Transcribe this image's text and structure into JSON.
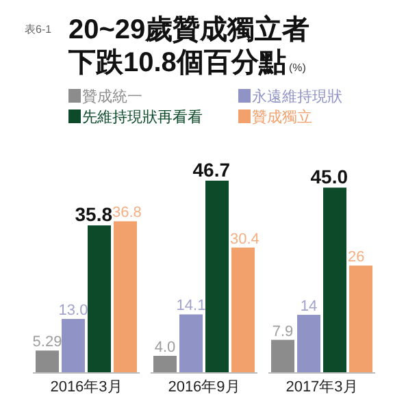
{
  "chart_data": {
    "type": "bar",
    "title": "20~29歲贊成獨立者下跌10.8個百分點",
    "annotations": [
      "表6-1",
      "(%)"
    ],
    "categories": [
      "2016年3月",
      "2016年9月",
      "2017年3月"
    ],
    "series": [
      {
        "name": "贊成統一",
        "color": "#8c8c8c",
        "values": [
          5.29,
          4.0,
          7.9
        ],
        "value_labels": [
          "5.29",
          "4.0",
          "7.9"
        ]
      },
      {
        "name": "永遠維持現狀",
        "color": "#9093c6",
        "values": [
          13.0,
          14.1,
          14
        ],
        "value_labels": [
          "13.0",
          "14.1",
          "14"
        ]
      },
      {
        "name": "先維持現狀再看看",
        "color": "#0c4a2a",
        "values": [
          35.8,
          46.7,
          45.0
        ],
        "value_labels": [
          "35.8",
          "46.7",
          "45.0"
        ]
      },
      {
        "name": "贊成獨立",
        "color": "#f2a06c",
        "values": [
          36.8,
          30.4,
          26
        ],
        "value_labels": [
          "36.8",
          "30.4",
          "26"
        ]
      }
    ],
    "legend": "top"
  }
}
